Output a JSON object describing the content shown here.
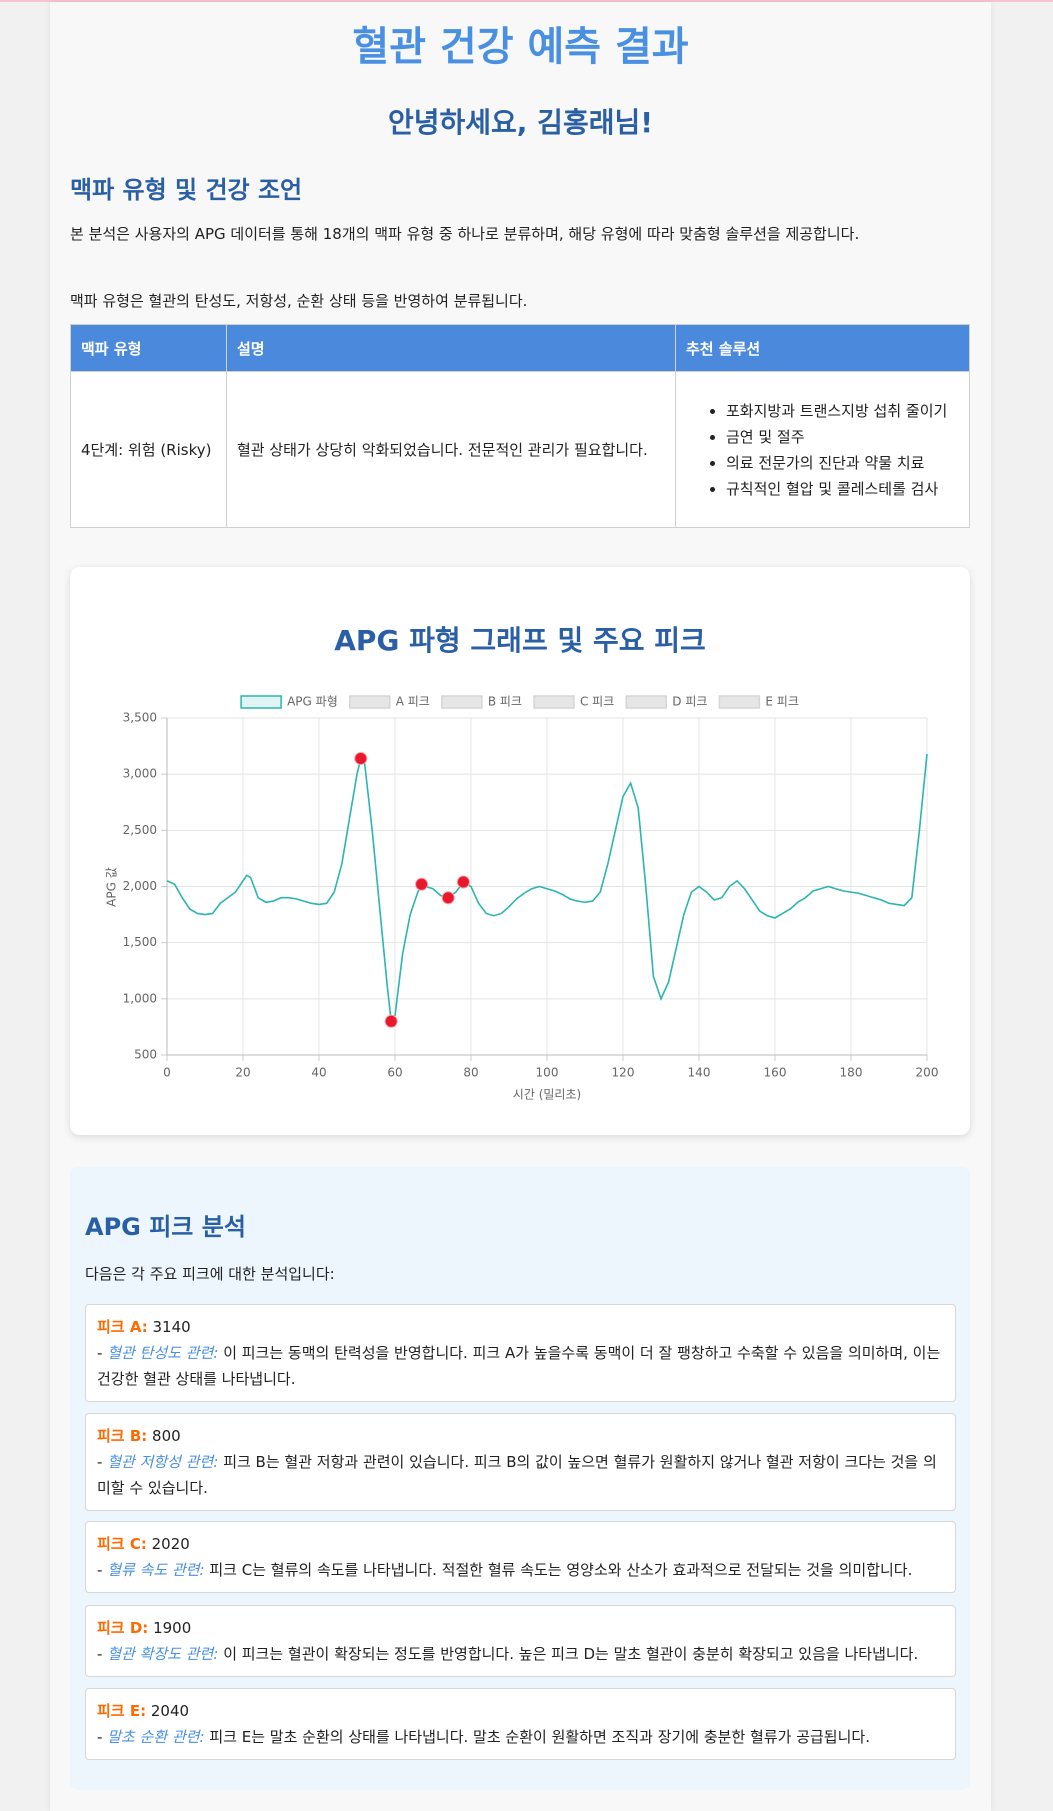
{
  "header": {
    "title": "혈관 건강 예측 결과",
    "greeting": "안녕하세요, 김홍래님!"
  },
  "advice": {
    "heading": "맥파 유형 및 건강 조언",
    "paragraphs": [
      "본 분석은 사용자의 APG 데이터를 통해 18개의 맥파 유형 중 하나로 분류하며, 해당 유형에 따라 맞춤형 솔루션을 제공합니다.",
      "맥파 유형은 혈관의 탄성도, 저항성, 순환 상태 등을 반영하여 분류됩니다."
    ]
  },
  "table": {
    "headers": [
      "맥파 유형",
      "설명",
      "추천 솔루션"
    ],
    "rows": [
      [
        "4단계: 위험 (Risky)",
        "혈관 상태가 상당히 악화되었습니다. 전문적인 관리가 필요합니다.",
        [
          "포화지방과 트랜스지방 섭취 줄이기",
          "금연 및 절주",
          "의료 전문가의 진단과 약물 치료",
          "규칙적인 혈압 및 콜레스테롤 검사"
        ]
      ]
    ]
  },
  "chart_data": {
    "type": "line",
    "title": "APG 파형 그래프 및 주요 피크",
    "x_label": "시간 (밀리초)",
    "y_label": "APG 값",
    "xlim": [
      0,
      200
    ],
    "xticks": [
      0,
      20,
      40,
      60,
      80,
      100,
      120,
      140,
      160,
      180,
      200
    ],
    "ylim": [
      500,
      3500
    ],
    "yticks": [
      500,
      {
        "value": 1000,
        "label": "1,000"
      },
      {
        "value": 1500,
        "label": "1,500"
      },
      {
        "value": 2000,
        "label": "2,000"
      },
      {
        "value": 2500,
        "label": "2,500"
      },
      {
        "value": 3000,
        "label": "3,000"
      },
      {
        "value": 3500,
        "label": "3,500"
      }
    ],
    "grid": true,
    "legend": "top",
    "series": [
      {
        "name": "APG 파형",
        "color": "#2bb5b0",
        "x": [
          0,
          2,
          4,
          6,
          8,
          10,
          12,
          14,
          16,
          18,
          20,
          21,
          22,
          24,
          26,
          28,
          30,
          32,
          34,
          36,
          38,
          40,
          42,
          44,
          46,
          48,
          50,
          51,
          52,
          54,
          56,
          58,
          59,
          60,
          62,
          64,
          66,
          67,
          68,
          70,
          72,
          74,
          76,
          78,
          80,
          82,
          84,
          86,
          88,
          90,
          92,
          94,
          96,
          98,
          100,
          102,
          104,
          106,
          108,
          110,
          112,
          114,
          116,
          118,
          120,
          122,
          124,
          126,
          128,
          130,
          132,
          134,
          136,
          138,
          140,
          142,
          144,
          146,
          148,
          150,
          152,
          154,
          156,
          158,
          160,
          162,
          164,
          166,
          168,
          170,
          172,
          174,
          176,
          178,
          180,
          182,
          184,
          186,
          188,
          190,
          192,
          194,
          196,
          198,
          200
        ],
        "values": [
          2050,
          2020,
          1900,
          1800,
          1760,
          1750,
          1760,
          1850,
          1900,
          1950,
          2050,
          2100,
          2080,
          1900,
          1860,
          1870,
          1900,
          1900,
          1890,
          1870,
          1850,
          1840,
          1850,
          1950,
          2200,
          2600,
          3000,
          3140,
          3100,
          2500,
          1800,
          1100,
          800,
          850,
          1400,
          1750,
          1950,
          2020,
          2000,
          1980,
          1920,
          1900,
          1950,
          2040,
          2000,
          1850,
          1760,
          1740,
          1760,
          1820,
          1890,
          1940,
          1980,
          2000,
          1980,
          1960,
          1930,
          1890,
          1870,
          1860,
          1870,
          1950,
          2200,
          2500,
          2800,
          2920,
          2700,
          2000,
          1200,
          1000,
          1150,
          1450,
          1750,
          1950,
          2000,
          1950,
          1880,
          1900,
          2000,
          2050,
          1980,
          1880,
          1780,
          1740,
          1720,
          1760,
          1800,
          1860,
          1900,
          1960,
          1980,
          2000,
          1980,
          1960,
          1950,
          1940,
          1920,
          1900,
          1880,
          1850,
          1840,
          1830,
          1900,
          2500,
          3180
        ]
      },
      {
        "name": "A 피크",
        "color": "#e8192c",
        "x": [
          51
        ],
        "values": [
          3140
        ]
      },
      {
        "name": "B 피크",
        "color": "#e8192c",
        "x": [
          59
        ],
        "values": [
          800
        ]
      },
      {
        "name": "C 피크",
        "color": "#e8192c",
        "x": [
          67
        ],
        "values": [
          2020
        ]
      },
      {
        "name": "D 피크",
        "color": "#e8192c",
        "x": [
          74
        ],
        "values": [
          1900
        ]
      },
      {
        "name": "E 피크",
        "color": "#e8192c",
        "x": [
          78
        ],
        "values": [
          2040
        ]
      }
    ]
  },
  "peaks": {
    "heading": "APG 피크 분석",
    "intro": "다음은 각 주요 피크에 대한 분석입니다:",
    "items": [
      {
        "label": "피크 A:",
        "value": 3140,
        "prefix": "-",
        "category": "혈관 탄성도 관련:",
        "text": "이 피크는 동맥의 탄력성을 반영합니다. 피크 A가 높을수록 동맥이 더 잘 팽창하고 수축할 수 있음을 의미하며, 이는 건강한 혈관 상태를 나타냅니다."
      },
      {
        "label": "피크 B:",
        "value": 800,
        "prefix": "-",
        "category": "혈관 저항성 관련:",
        "text": "피크 B는 혈관 저항과 관련이 있습니다. 피크 B의 값이 높으면 혈류가 원활하지 않거나 혈관 저항이 크다는 것을 의미할 수 있습니다."
      },
      {
        "label": "피크 C:",
        "value": 2020,
        "prefix": "-",
        "category": "혈류 속도 관련:",
        "text": "피크 C는 혈류의 속도를 나타냅니다. 적절한 혈류 속도는 영양소와 산소가 효과적으로 전달되는 것을 의미합니다."
      },
      {
        "label": "피크 D:",
        "value": 1900,
        "prefix": "-",
        "category": "혈관 확장도 관련:",
        "text": "이 피크는 혈관이 확장되는 정도를 반영합니다. 높은 피크 D는 말초 혈관이 충분히 확장되고 있음을 나타냅니다."
      },
      {
        "label": "피크 E:",
        "value": 2040,
        "prefix": "-",
        "category": "말초 순환 관련:",
        "text": "피크 E는 말초 순환의 상태를 나타냅니다. 말초 순환이 원활하면 조직과 장기에 충분한 혈류가 공급됩니다."
      }
    ]
  }
}
